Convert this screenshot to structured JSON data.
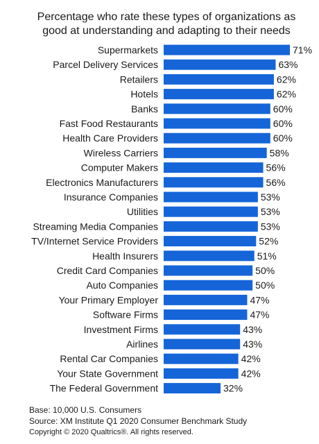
{
  "chart_data": {
    "type": "bar",
    "orientation": "horizontal",
    "title_lines": [
      "Percentage who rate these types of organizations as",
      "good at understanding and adapting to their needs"
    ],
    "categories": [
      "Supermarkets",
      "Parcel Delivery Services",
      "Retailers",
      "Hotels",
      "Banks",
      "Fast Food Restaurants",
      "Health Care Providers",
      "Wireless Carriers",
      "Computer Makers",
      "Electronics Manufacturers",
      "Insurance Companies",
      "Utilities",
      "Streaming Media Companies",
      "TV/Internet Service Providers",
      "Health Insurers",
      "Credit Card Companies",
      "Auto Companies",
      "Your Primary Employer",
      "Software Firms",
      "Investment Firms",
      "Airlines",
      "Rental Car Companies",
      "Your State Government",
      "The Federal Government"
    ],
    "values": [
      71,
      63,
      62,
      62,
      60,
      60,
      60,
      58,
      56,
      56,
      53,
      53,
      53,
      52,
      51,
      50,
      50,
      47,
      47,
      43,
      43,
      42,
      42,
      32
    ],
    "value_suffix": "%",
    "bar_color": "#1565d8",
    "xlim": [
      0,
      71
    ],
    "grid": false,
    "legend": "none"
  },
  "footer": {
    "base": "Base: 10,000 U.S. Consumers",
    "source": "Source: XM Institute Q1 2020 Consumer Benchmark Study",
    "copyright": "Copyright © 2020 Qualtrics®.  All rights reserved."
  }
}
